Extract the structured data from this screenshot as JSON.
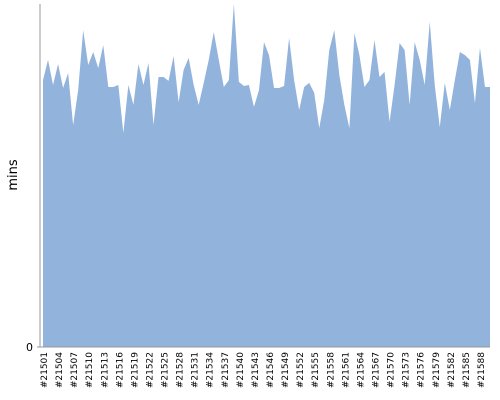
{
  "chart_data": {
    "type": "area",
    "y_label": "mins",
    "color": "#92b3dc",
    "categories": [
      "#21501",
      null,
      null,
      "#21504",
      null,
      null,
      "#21507",
      null,
      null,
      "#21510",
      null,
      null,
      "#21513",
      null,
      null,
      "#21516",
      null,
      null,
      "#21519",
      null,
      null,
      "#21522",
      null,
      null,
      "#21525",
      null,
      null,
      "#21528",
      null,
      null,
      "#21531",
      null,
      null,
      "#21534",
      null,
      null,
      "#21537",
      null,
      null,
      "#21540",
      null,
      null,
      "#21543",
      null,
      null,
      "#21546",
      null,
      null,
      "#21549",
      null,
      null,
      "#21552",
      null,
      null,
      "#21555",
      null,
      null,
      "#21558",
      null,
      null,
      "#21561",
      null,
      null,
      "#21564",
      null,
      null,
      "#21567",
      null,
      null,
      "#21570",
      null,
      null,
      "#21573",
      null,
      null,
      "#21576",
      null,
      null,
      "#21579",
      null,
      null,
      "#21582",
      null,
      null,
      "#21585",
      null,
      null,
      "#21588",
      null,
      null
    ],
    "values": [
      77.8,
      83.7,
      76.4,
      82.5,
      75.5,
      79.9,
      64.7,
      74.9,
      92.4,
      82.2,
      86,
      81.3,
      88,
      75.8,
      75.8,
      76.4,
      62.4,
      76.4,
      70.6,
      82.5,
      76.4,
      82.8,
      64.7,
      78.7,
      78.7,
      77.6,
      84.8,
      71.4,
      80.8,
      84.3,
      76.4,
      70.6,
      77,
      83.7,
      91.8,
      83.7,
      75.8,
      77.8,
      100,
      77.3,
      76.1,
      76.4,
      70,
      74.9,
      88.9,
      85.1,
      75.5,
      75.5,
      76.1,
      90.1,
      77.8,
      69.1,
      75.8,
      77,
      74.1,
      63.8,
      72,
      86.6,
      92.4,
      79.3,
      70.6,
      63.8,
      91.5,
      85.1,
      75.8,
      77.8,
      89.5,
      78.7,
      80.2,
      65.6,
      76.4,
      88.6,
      86.6,
      70.6,
      88.9,
      83.7,
      76.4,
      94.8,
      76.4,
      64.1,
      77,
      69.1,
      77.8,
      86,
      85.1,
      83.7,
      71.1,
      87.2,
      75.8,
      75.8
    ],
    "ylim": [
      0,
      100
    ],
    "yticks": [
      0
    ]
  }
}
